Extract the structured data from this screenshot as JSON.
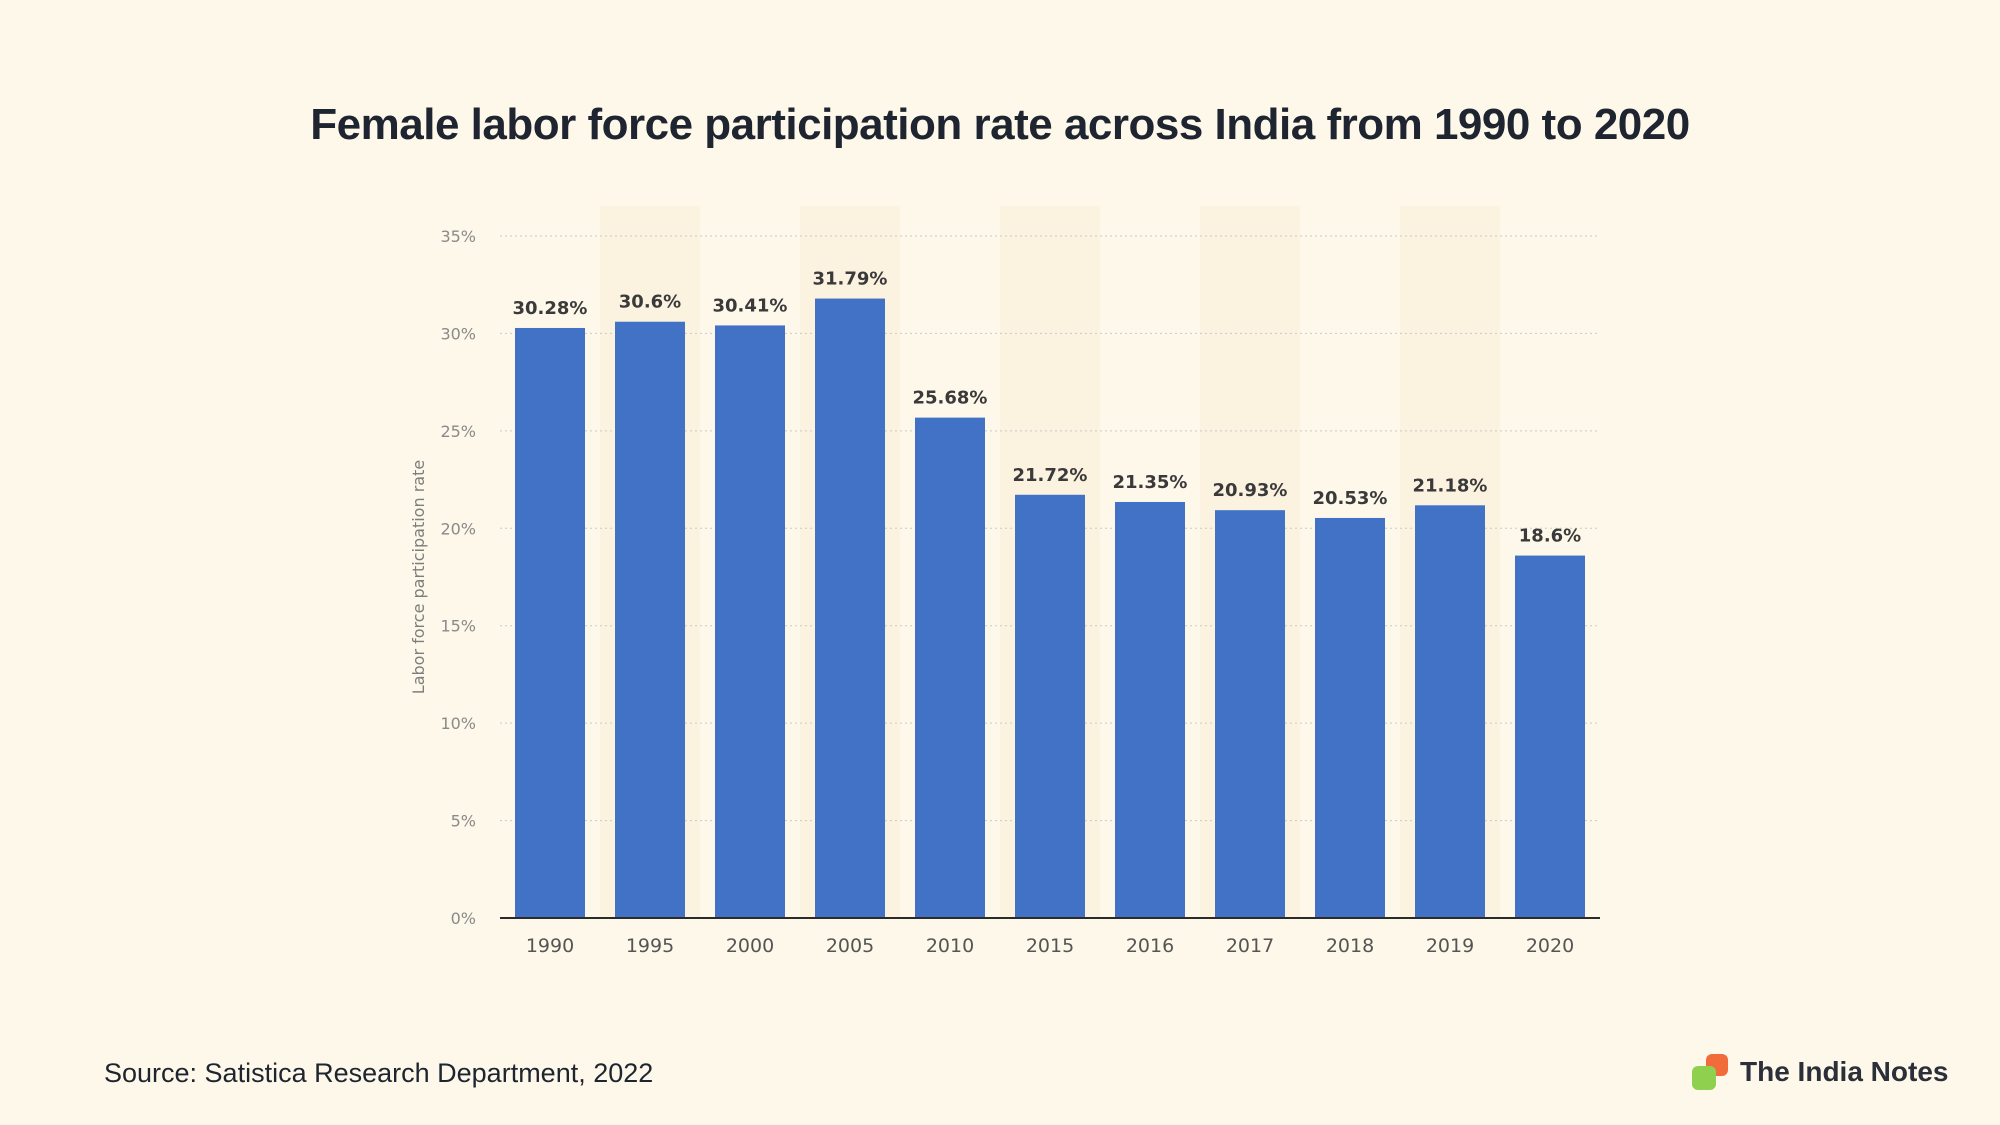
{
  "chart_data": {
    "type": "bar",
    "title": "Female labor force participation rate across India from 1990 to 2020",
    "xlabel": "",
    "ylabel": "Labor force participation rate",
    "categories": [
      "1990",
      "1995",
      "2000",
      "2005",
      "2010",
      "2015",
      "2016",
      "2017",
      "2018",
      "2019",
      "2020"
    ],
    "values": [
      30.28,
      30.6,
      30.41,
      31.79,
      25.68,
      21.72,
      21.35,
      20.93,
      20.53,
      21.18,
      18.6
    ],
    "value_labels": [
      "30.28%",
      "30.6%",
      "30.41%",
      "31.79%",
      "25.68%",
      "21.72%",
      "21.35%",
      "20.93%",
      "20.53%",
      "21.18%",
      "18.6%"
    ],
    "ylim": [
      0,
      35
    ],
    "yticks": [
      0,
      5,
      10,
      15,
      20,
      25,
      30,
      35
    ],
    "ytick_labels": [
      "0%",
      "5%",
      "10%",
      "15%",
      "20%",
      "25%",
      "30%",
      "35%"
    ],
    "grid": true,
    "bar_color": "#4172c6"
  },
  "footer": {
    "source": "Source: Satistica Research Department, 2022",
    "brand": "The India Notes"
  },
  "colors": {
    "background": "#fdf8e9",
    "brand_orange": "#f26b3a",
    "brand_green": "#8fd14f"
  }
}
